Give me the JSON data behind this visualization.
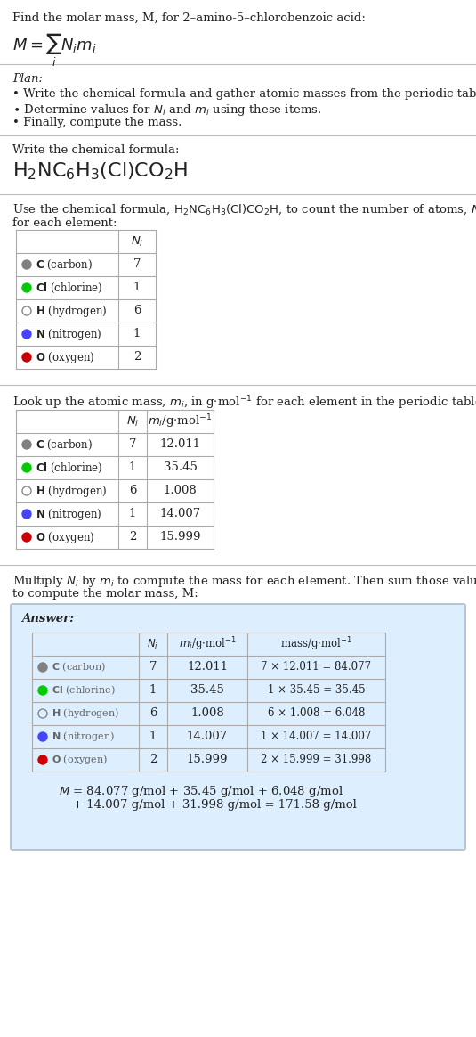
{
  "title_line": "Find the molar mass, M, for 2–amino-5–chlorobenzoic acid:",
  "formula_display": "H₂NC₆H₃(Cl)CO₂H",
  "elements": [
    "C (carbon)",
    "Cl (chlorine)",
    "H (hydrogen)",
    "N (nitrogen)",
    "O (oxygen)"
  ],
  "element_symbols": [
    "C",
    "Cl",
    "H",
    "N",
    "O"
  ],
  "dot_colors": [
    "#808080",
    "#00cc00",
    "none",
    "#4444ff",
    "#cc0000"
  ],
  "dot_filled": [
    true,
    true,
    false,
    true,
    true
  ],
  "N_i": [
    7,
    1,
    6,
    1,
    2
  ],
  "m_i": [
    "12.011",
    "35.45",
    "1.008",
    "14.007",
    "15.999"
  ],
  "mass_expr": [
    "7 × 12.011 = 84.077",
    "1 × 35.45 = 35.45",
    "6 × 1.008 = 6.048",
    "1 × 14.007 = 14.007",
    "2 × 15.999 = 31.998"
  ],
  "final_eq_line1": "M = 84.077 g/mol + 35.45 g/mol + 6.048 g/mol",
  "final_eq_line2": "+ 14.007 g/mol + 31.998 g/mol = 171.58 g/mol",
  "bg_color": "#ffffff",
  "answer_box_color": "#ddeeff",
  "answer_box_edge": "#aabbcc",
  "table_line_color": "#cccccc",
  "text_color": "#222222",
  "gray_text": "#666666"
}
